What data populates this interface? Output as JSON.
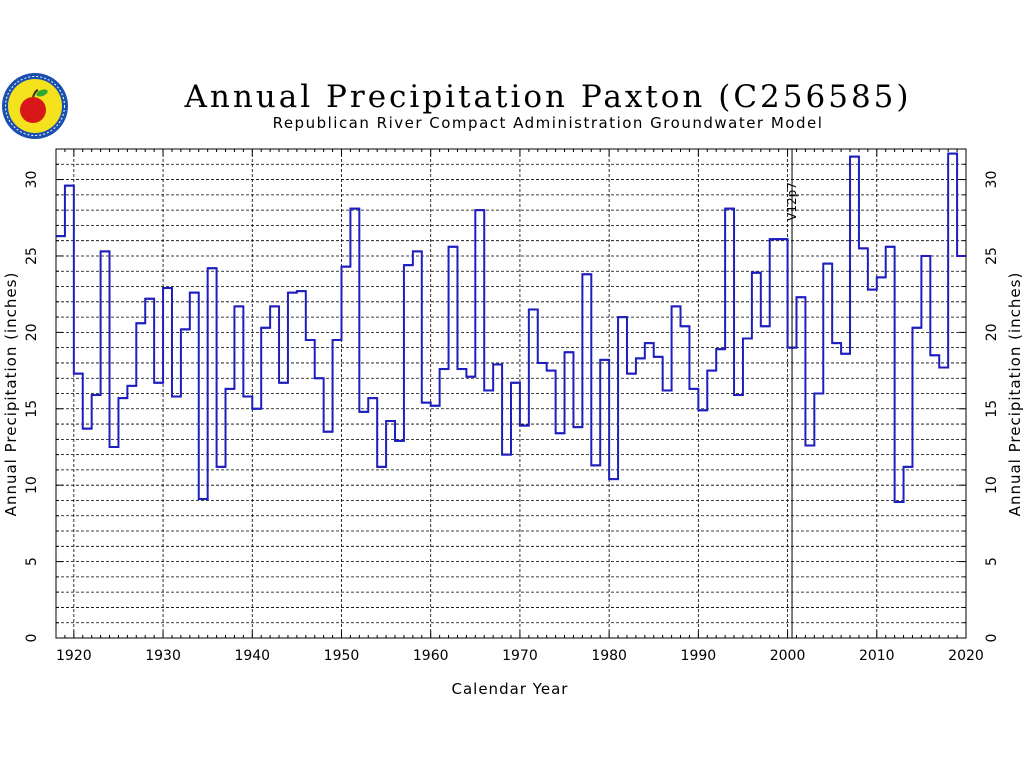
{
  "chart_data": {
    "type": "line",
    "step": true,
    "title": "Annual Precipitation Paxton (C256585)",
    "subtitle": "Republican River Compact Administration Groundwater Model",
    "xlabel": "Calendar Year",
    "ylabel": "Annual Precipitation (inches)",
    "xlim": [
      1918,
      2020
    ],
    "ylim": [
      0,
      32
    ],
    "x_ticks": [
      1920,
      1930,
      1940,
      1950,
      1960,
      1970,
      1980,
      1990,
      2000,
      2010,
      2020
    ],
    "y_ticks": [
      0,
      5,
      10,
      15,
      20,
      25,
      30
    ],
    "grid": true,
    "annotation": {
      "text": "V12p7",
      "x": 2000.5
    },
    "series_color": "#1f1fbf",
    "x": [
      1918,
      1919,
      1920,
      1921,
      1922,
      1923,
      1924,
      1925,
      1926,
      1927,
      1928,
      1929,
      1930,
      1931,
      1932,
      1933,
      1934,
      1935,
      1936,
      1937,
      1938,
      1939,
      1940,
      1941,
      1942,
      1943,
      1944,
      1945,
      1946,
      1947,
      1948,
      1949,
      1950,
      1951,
      1952,
      1953,
      1954,
      1955,
      1956,
      1957,
      1958,
      1959,
      1960,
      1961,
      1962,
      1963,
      1964,
      1965,
      1966,
      1967,
      1968,
      1969,
      1970,
      1971,
      1972,
      1973,
      1974,
      1975,
      1976,
      1977,
      1978,
      1979,
      1980,
      1981,
      1982,
      1983,
      1984,
      1985,
      1986,
      1987,
      1988,
      1989,
      1990,
      1991,
      1992,
      1993,
      1994,
      1995,
      1996,
      1997,
      1998,
      1999,
      2000,
      2001,
      2002,
      2003,
      2004,
      2005,
      2006,
      2007,
      2008,
      2009,
      2010,
      2011,
      2012,
      2013,
      2014,
      2015,
      2016,
      2017,
      2018,
      2019
    ],
    "values": [
      26.3,
      29.6,
      17.3,
      13.7,
      15.9,
      25.3,
      12.5,
      15.7,
      16.5,
      20.6,
      22.2,
      16.7,
      22.9,
      15.8,
      20.2,
      22.6,
      9.1,
      24.2,
      11.2,
      16.3,
      21.7,
      15.8,
      15.0,
      20.3,
      21.7,
      16.7,
      22.6,
      22.7,
      19.5,
      17.0,
      13.5,
      19.5,
      24.3,
      28.1,
      14.8,
      15.7,
      11.2,
      14.2,
      12.9,
      24.4,
      25.3,
      15.4,
      15.2,
      17.6,
      25.6,
      17.6,
      17.1,
      28.0,
      16.2,
      17.9,
      12.0,
      16.7,
      13.9,
      21.5,
      18.0,
      17.5,
      13.4,
      18.7,
      13.8,
      23.8,
      11.3,
      18.2,
      10.4,
      21.0,
      17.3,
      18.3,
      19.3,
      18.4,
      16.2,
      21.7,
      20.4,
      16.3,
      14.9,
      17.5,
      18.9,
      28.1,
      15.9,
      19.6,
      23.9,
      20.4,
      26.1,
      26.1,
      19.0,
      22.3,
      12.6,
      16.0,
      24.5,
      19.3,
      18.6,
      31.5,
      25.5,
      22.8,
      23.6,
      25.6,
      8.9,
      11.2,
      20.3,
      25.0,
      18.5,
      17.7,
      31.7,
      25.0
    ]
  }
}
